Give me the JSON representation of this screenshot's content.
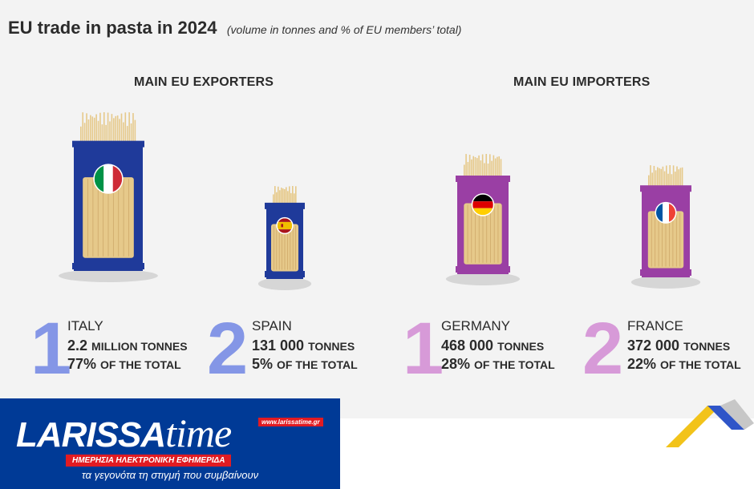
{
  "title": "EU trade in pasta in 2024",
  "subtitle": "(volume in tonnes and % of EU members’ total)",
  "colors": {
    "exporter_bag": "#1f3a9a",
    "importer_bag": "#9a3fa4",
    "exporter_rank": "#8496e6",
    "importer_rank": "#d79ad8",
    "pasta": "#e6c98a",
    "brand_blue": "#003a96",
    "brand_red": "#e11b22"
  },
  "sections": {
    "exporters": "MAIN EU EXPORTERS",
    "importers": "MAIN EU IMPORTERS"
  },
  "chart_data": {
    "type": "bar",
    "title": "EU trade in pasta in 2024",
    "subtitle": "(volume in tonnes and % of EU members’ total)",
    "series": [
      {
        "name": "MAIN EU EXPORTERS",
        "categories": [
          "ITALY",
          "SPAIN"
        ],
        "values_tonnes": [
          2200000,
          131000
        ],
        "share_percent": [
          77,
          5
        ]
      },
      {
        "name": "MAIN EU IMPORTERS",
        "categories": [
          "GERMANY",
          "FRANCE"
        ],
        "values_tonnes": [
          468000,
          372000
        ],
        "share_percent": [
          28,
          22
        ]
      }
    ]
  },
  "entries": [
    {
      "rank": "1",
      "country": "ITALY",
      "amount": "2.2",
      "unit": "MILLION TONNES",
      "share": "77%",
      "share_label": "OF THE TOTAL",
      "flag": "italy-flag-icon"
    },
    {
      "rank": "2",
      "country": "SPAIN",
      "amount": "131 000",
      "unit": "TONNES",
      "share": "5%",
      "share_label": "OF THE TOTAL",
      "flag": "spain-flag-icon"
    },
    {
      "rank": "1",
      "country": "GERMANY",
      "amount": "468 000",
      "unit": "TONNES",
      "share": "28%",
      "share_label": "OF THE  TOTAL",
      "flag": "germany-flag-icon"
    },
    {
      "rank": "2",
      "country": "FRANCE",
      "amount": "372 000",
      "unit": "TONNES",
      "share": "22%",
      "share_label": "OF THE TOTAL",
      "flag": "france-flag-icon"
    }
  ],
  "brand": {
    "logo_main": "LARISSA",
    "logo_accent": "time",
    "url": "www.larissatime.gr",
    "strap": "ΗΜΕΡΗΣΙΑ ΗΛΕΚΤΡΟΝΙΚΗ ΕΦΗΜΕΡΙΔΑ",
    "tagline": "τα γεγονότα τη στιγμή που συμβαίνουν"
  }
}
